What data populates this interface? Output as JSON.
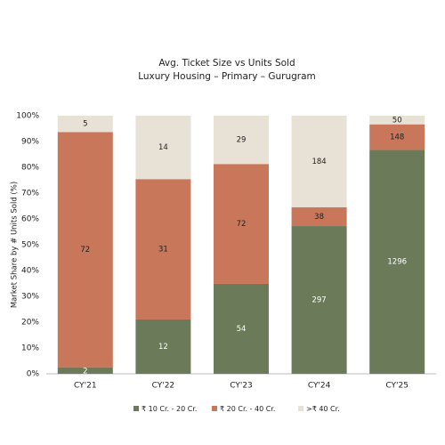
{
  "chart_data": {
    "type": "bar",
    "stack": "percent",
    "title": "Avg. Ticket Size vs Units Sold",
    "subtitle": "Luxury Housing – Primary – Gurugram",
    "y_label": "Market Share by # Units Sold (%)",
    "categories": [
      "CY'21",
      "CY'22",
      "CY'23",
      "CY'24",
      "CY'25"
    ],
    "series": [
      {
        "name": "₹ 10 Cr. - 20 Cr.",
        "color": "#6b7b5a",
        "values": [
          2,
          12,
          54,
          297,
          1296
        ]
      },
      {
        "name": "₹ 20 Cr. - 40 Cr.",
        "color": "#c8775a",
        "values": [
          72,
          31,
          72,
          38,
          148
        ]
      },
      {
        "name": ">₹ 40 Cr.",
        "color": "#e8e1d6",
        "values": [
          5,
          14,
          29,
          184,
          50
        ]
      }
    ],
    "ylim": [
      0,
      100
    ],
    "yticks": [
      {
        "value": 0,
        "label": "0%"
      },
      {
        "value": 10,
        "label": "10%"
      },
      {
        "value": 20,
        "label": "20%"
      },
      {
        "value": 30,
        "label": "30%"
      },
      {
        "value": 40,
        "label": "40%"
      },
      {
        "value": 50,
        "label": "50%"
      },
      {
        "value": 60,
        "label": "60%"
      },
      {
        "value": 70,
        "label": "70%"
      },
      {
        "value": 80,
        "label": "80%"
      },
      {
        "value": 90,
        "label": "90%"
      },
      {
        "value": 100,
        "label": "100%"
      }
    ],
    "grid": false,
    "legend": "bottom"
  }
}
